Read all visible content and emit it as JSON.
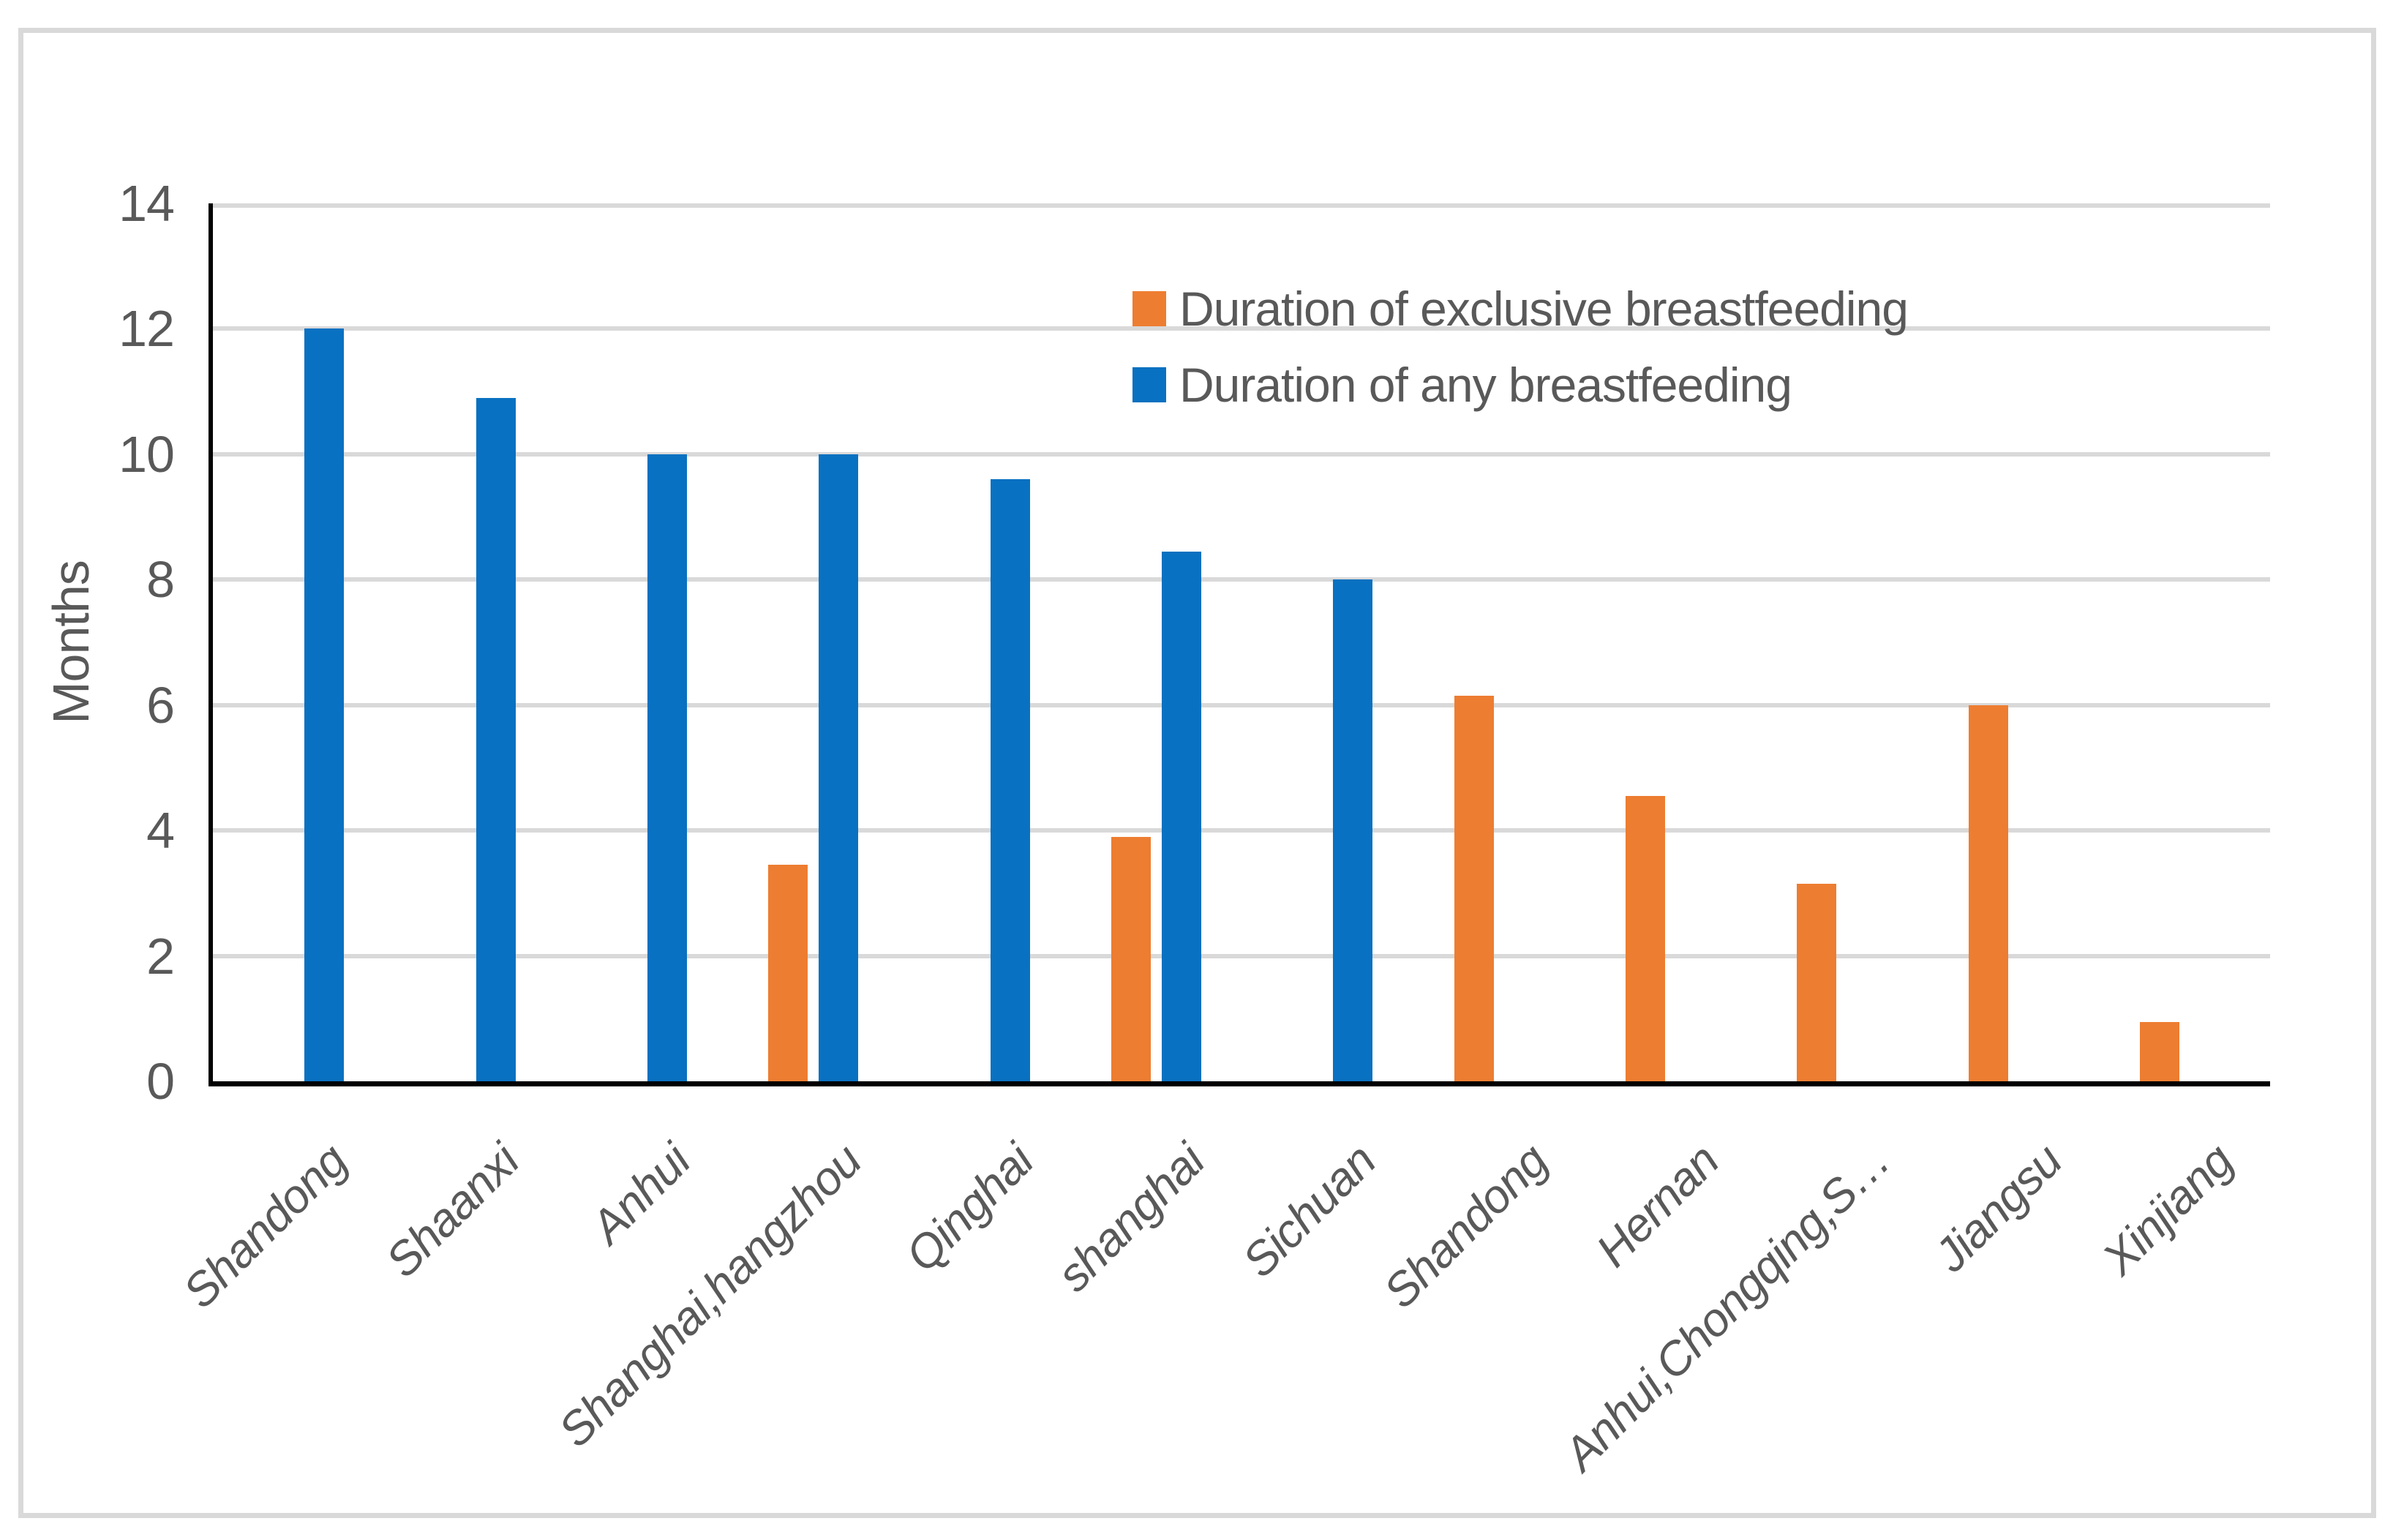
{
  "chart_data": {
    "type": "bar",
    "title": "",
    "ylabel": "Months",
    "xlabel": "",
    "ylim": [
      0,
      14
    ],
    "ytick_step": 2,
    "grid": true,
    "legend_position": "inside-top-center",
    "categories": [
      "Shandong",
      "Shaanxi",
      "Anhui",
      "Shanghai,hangzhou",
      "Qinghai",
      "shanghai",
      "Sichuan",
      "Shandong",
      "Hernan",
      "Anhui,Chongqing,S…",
      "Jiangsu",
      "Xinjiang"
    ],
    "series": [
      {
        "name": "Duration of exclusive breastfeeding",
        "color": "#ED7D31",
        "values": [
          null,
          null,
          null,
          3.45,
          null,
          3.9,
          null,
          6.15,
          4.55,
          3.15,
          6.0,
          0.95
        ]
      },
      {
        "name": "Duration of any breastfeeding",
        "color": "#0971C1",
        "values": [
          12.0,
          10.9,
          10.0,
          10.0,
          9.6,
          8.45,
          8.0,
          null,
          null,
          null,
          null,
          null
        ]
      }
    ]
  },
  "style_colors": {
    "gridline": "#D9D9D9",
    "axis": "#000000",
    "text": "#595959",
    "frame_border": "#D9D9D9",
    "background": "#FFFFFF"
  }
}
